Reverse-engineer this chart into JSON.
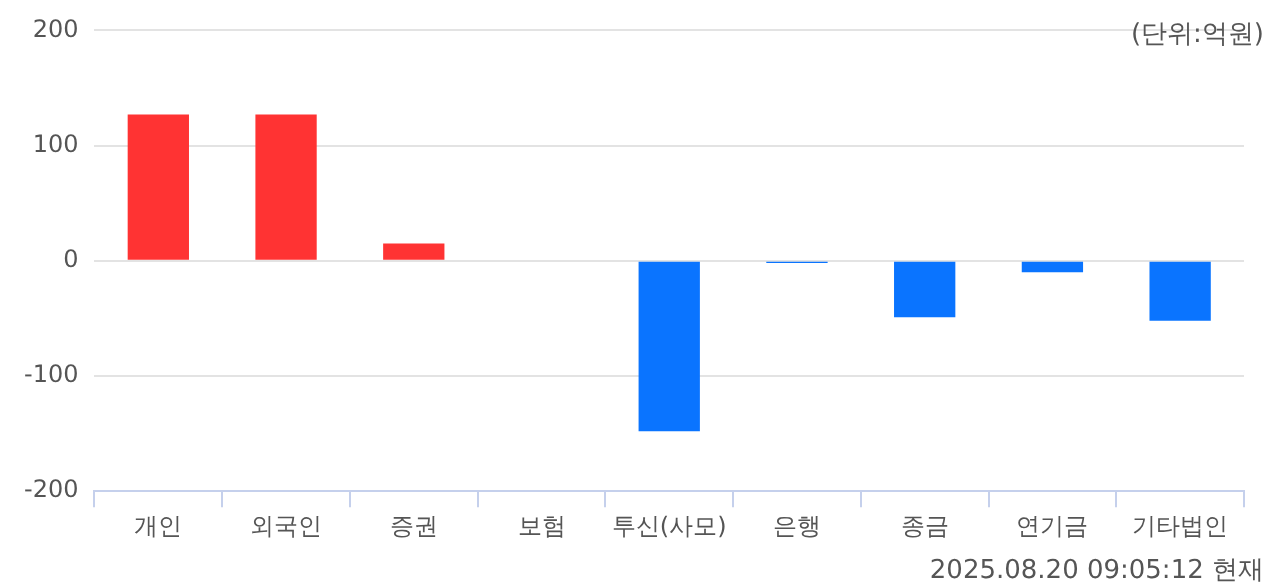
{
  "chart_data": {
    "type": "bar",
    "categories": [
      "개인",
      "외국인",
      "증권",
      "보험",
      "투신(사모)",
      "은행",
      "종금",
      "연기금",
      "기타법인"
    ],
    "values": [
      127,
      127,
      15,
      0,
      -148,
      -2,
      -49,
      -10,
      -52
    ],
    "colors": [
      "#ff3333",
      "#ff3333",
      "#ff3333",
      "#ff3333",
      "#0a74ff",
      "#0a74ff",
      "#0a74ff",
      "#0a74ff",
      "#0a74ff"
    ],
    "ylim": [
      -200,
      200
    ],
    "yticks": [
      -200,
      -100,
      0,
      100,
      200
    ],
    "grid": "y",
    "legend": false,
    "annotations": [
      "(단위:억원)",
      "2025.08.20 09:05:12 현재"
    ]
  }
}
